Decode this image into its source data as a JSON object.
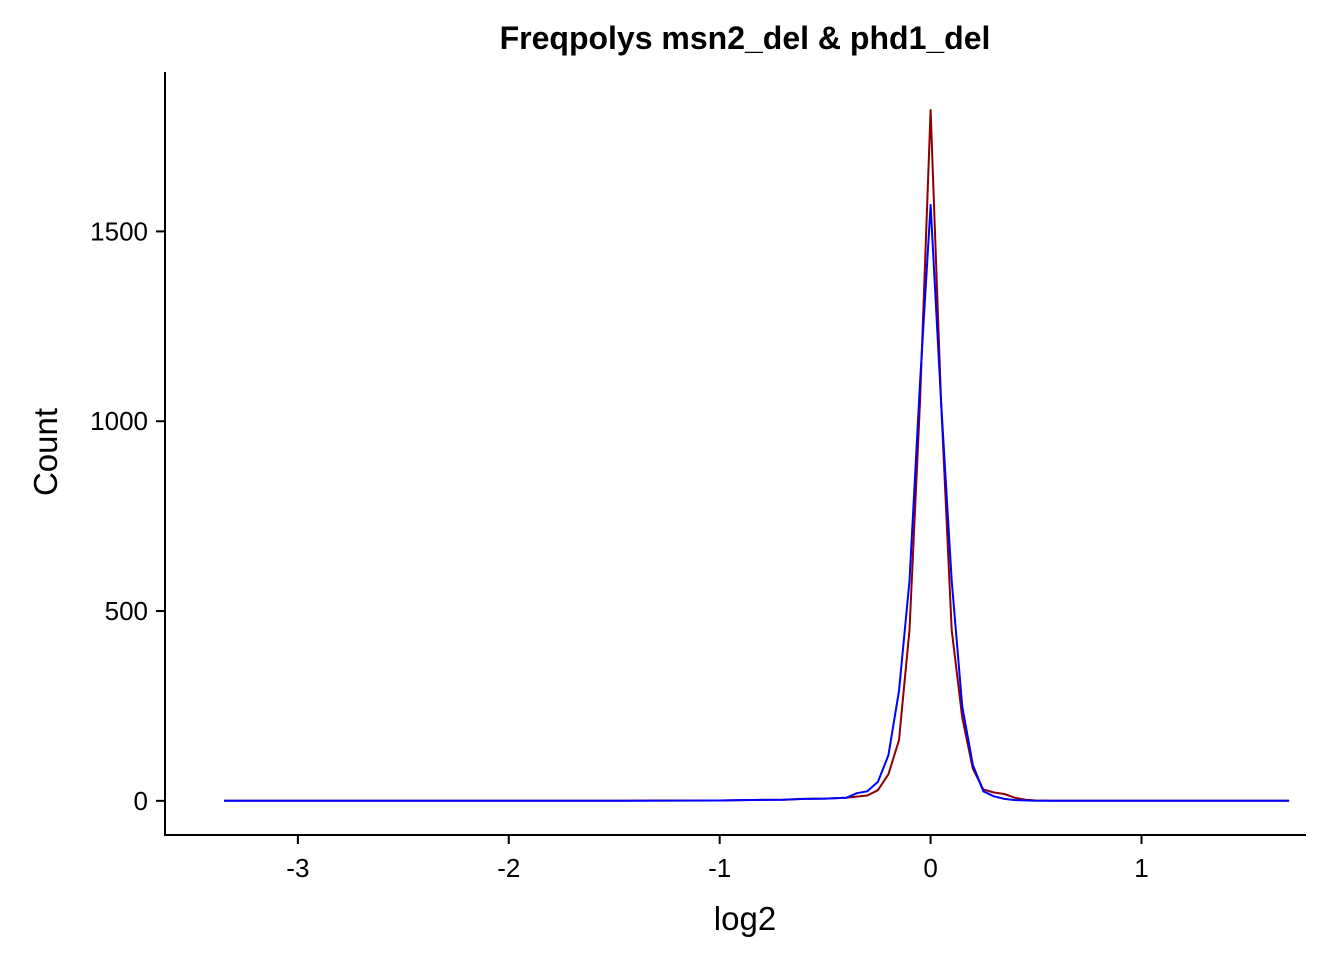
{
  "chart_data": {
    "type": "line",
    "title": "Freqpolys msn2_del & phd1_del",
    "xlabel": "log2",
    "ylabel": "Count",
    "xlim": [
      -3.63,
      1.78
    ],
    "ylim": [
      -90,
      1920
    ],
    "x_ticks": [
      -3,
      -2,
      -1,
      0,
      1
    ],
    "x_tick_labels": [
      "-3",
      "-2",
      "-1",
      "0",
      "1"
    ],
    "y_ticks": [
      0,
      500,
      1000,
      1500
    ],
    "y_tick_labels": [
      "0",
      "500",
      "1000",
      "1500"
    ],
    "grid": false,
    "legend": "none",
    "series": [
      {
        "color": "#8B0000",
        "points": [
          [
            -3.35,
            0
          ],
          [
            -2.5,
            0
          ],
          [
            -1.5,
            0
          ],
          [
            -1.3,
            1
          ],
          [
            -1.0,
            1
          ],
          [
            -0.9,
            2
          ],
          [
            -0.7,
            3
          ],
          [
            -0.6,
            5
          ],
          [
            -0.5,
            6
          ],
          [
            -0.4,
            8
          ],
          [
            -0.3,
            14
          ],
          [
            -0.25,
            28
          ],
          [
            -0.2,
            70
          ],
          [
            -0.15,
            160
          ],
          [
            -0.1,
            450
          ],
          [
            -0.05,
            1050
          ],
          [
            0.0,
            1820
          ],
          [
            0.05,
            1050
          ],
          [
            0.1,
            450
          ],
          [
            0.15,
            220
          ],
          [
            0.2,
            85
          ],
          [
            0.25,
            30
          ],
          [
            0.3,
            22
          ],
          [
            0.35,
            18
          ],
          [
            0.4,
            8
          ],
          [
            0.45,
            3
          ],
          [
            0.5,
            1
          ],
          [
            0.6,
            0
          ],
          [
            1.0,
            0
          ],
          [
            1.7,
            0
          ]
        ]
      },
      {
        "color": "#0000FF",
        "points": [
          [
            -3.35,
            0
          ],
          [
            -2.5,
            0
          ],
          [
            -1.5,
            0
          ],
          [
            -1.0,
            1
          ],
          [
            -0.9,
            2
          ],
          [
            -0.7,
            3
          ],
          [
            -0.6,
            5
          ],
          [
            -0.5,
            6
          ],
          [
            -0.4,
            8
          ],
          [
            -0.35,
            20
          ],
          [
            -0.3,
            25
          ],
          [
            -0.25,
            50
          ],
          [
            -0.2,
            120
          ],
          [
            -0.15,
            290
          ],
          [
            -0.1,
            580
          ],
          [
            -0.05,
            1100
          ],
          [
            0.0,
            1570
          ],
          [
            0.05,
            1050
          ],
          [
            0.1,
            580
          ],
          [
            0.15,
            250
          ],
          [
            0.2,
            95
          ],
          [
            0.25,
            25
          ],
          [
            0.3,
            12
          ],
          [
            0.35,
            5
          ],
          [
            0.4,
            2
          ],
          [
            0.5,
            0
          ],
          [
            1.0,
            0
          ],
          [
            1.7,
            0
          ]
        ]
      }
    ]
  }
}
